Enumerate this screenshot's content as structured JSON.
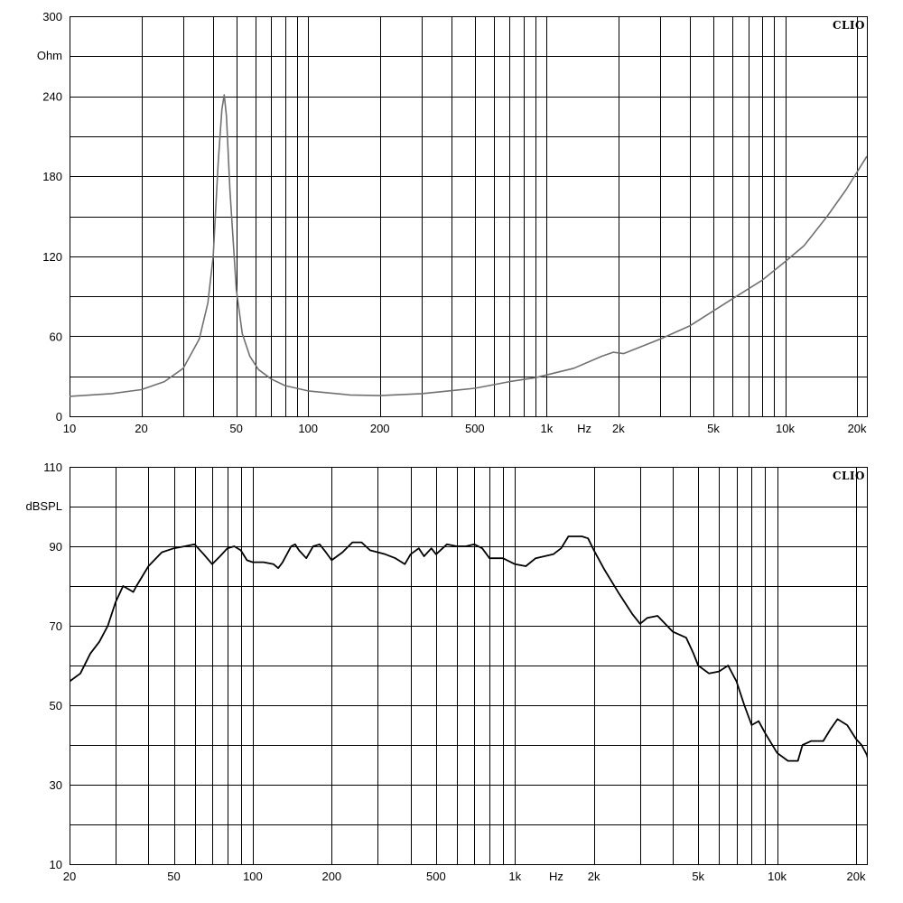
{
  "chart_data": [
    {
      "type": "line",
      "brand": "CLIO",
      "ylabel": "Ohm",
      "xlabel": "Hz",
      "x_scale": "log",
      "xlim": [
        10,
        22000
      ],
      "ylim": [
        0,
        300
      ],
      "grid": true,
      "x_ticks": [
        {
          "v": 10,
          "label": "10"
        },
        {
          "v": 20,
          "label": "20"
        },
        {
          "v": 50,
          "label": "50"
        },
        {
          "v": 100,
          "label": "100"
        },
        {
          "v": 200,
          "label": "200"
        },
        {
          "v": 500,
          "label": "500"
        },
        {
          "v": 1000,
          "label": "1k"
        },
        {
          "v": 2000,
          "label": "2k"
        },
        {
          "v": 5000,
          "label": "5k"
        },
        {
          "v": 10000,
          "label": "10k"
        },
        {
          "v": 20000,
          "label": "20k"
        }
      ],
      "y_ticks": [
        {
          "v": 0,
          "label": "0"
        },
        {
          "v": 60,
          "label": "60"
        },
        {
          "v": 120,
          "label": "120"
        },
        {
          "v": 180,
          "label": "180"
        },
        {
          "v": 240,
          "label": "240"
        },
        {
          "v": 300,
          "label": "300"
        }
      ],
      "y_grid_step": 30,
      "series": [
        {
          "color": "#707070",
          "points": [
            [
              10,
              15
            ],
            [
              15,
              17
            ],
            [
              20,
              20
            ],
            [
              25,
              26
            ],
            [
              30,
              36
            ],
            [
              35,
              58
            ],
            [
              38,
              85
            ],
            [
              40,
              120
            ],
            [
              42,
              190
            ],
            [
              43.5,
              230
            ],
            [
              44.5,
              241
            ],
            [
              45.5,
              225
            ],
            [
              47,
              170
            ],
            [
              50,
              95
            ],
            [
              53,
              62
            ],
            [
              57,
              45
            ],
            [
              62,
              35
            ],
            [
              70,
              28
            ],
            [
              80,
              23
            ],
            [
              100,
              19
            ],
            [
              150,
              16
            ],
            [
              200,
              15.5
            ],
            [
              300,
              17
            ],
            [
              500,
              21
            ],
            [
              700,
              26
            ],
            [
              900,
              29
            ],
            [
              1000,
              31
            ],
            [
              1300,
              36
            ],
            [
              1700,
              45
            ],
            [
              1900,
              48
            ],
            [
              2100,
              47
            ],
            [
              3000,
              58
            ],
            [
              4000,
              68
            ],
            [
              5000,
              79
            ],
            [
              6000,
              88
            ],
            [
              8000,
              102
            ],
            [
              10000,
              116
            ],
            [
              12000,
              128
            ],
            [
              15000,
              150
            ],
            [
              18000,
              170
            ],
            [
              22000,
              195
            ]
          ]
        }
      ]
    },
    {
      "type": "line",
      "brand": "CLIO",
      "ylabel": "dBSPL",
      "xlabel": "Hz",
      "x_scale": "log",
      "xlim": [
        20,
        22000
      ],
      "ylim": [
        10,
        110
      ],
      "grid": true,
      "x_ticks": [
        {
          "v": 20,
          "label": "20"
        },
        {
          "v": 50,
          "label": "50"
        },
        {
          "v": 100,
          "label": "100"
        },
        {
          "v": 200,
          "label": "200"
        },
        {
          "v": 500,
          "label": "500"
        },
        {
          "v": 1000,
          "label": "1k"
        },
        {
          "v": 2000,
          "label": "2k"
        },
        {
          "v": 5000,
          "label": "5k"
        },
        {
          "v": 10000,
          "label": "10k"
        },
        {
          "v": 20000,
          "label": "20k"
        }
      ],
      "y_ticks": [
        {
          "v": 10,
          "label": "10"
        },
        {
          "v": 30,
          "label": "30"
        },
        {
          "v": 50,
          "label": "50"
        },
        {
          "v": 70,
          "label": "70"
        },
        {
          "v": 90,
          "label": "90"
        },
        {
          "v": 110,
          "label": "110"
        }
      ],
      "y_grid_step": 10,
      "series": [
        {
          "color": "#000000",
          "points": [
            [
              20,
              56
            ],
            [
              22,
              58
            ],
            [
              24,
              63
            ],
            [
              26,
              66
            ],
            [
              28,
              70
            ],
            [
              30,
              76
            ],
            [
              32,
              80
            ],
            [
              34,
              79
            ],
            [
              35,
              78.5
            ],
            [
              36,
              80
            ],
            [
              40,
              85
            ],
            [
              45,
              88.5
            ],
            [
              50,
              89.5
            ],
            [
              55,
              90
            ],
            [
              60,
              90.5
            ],
            [
              65,
              88
            ],
            [
              70,
              85.5
            ],
            [
              75,
              87.5
            ],
            [
              80,
              89.5
            ],
            [
              85,
              90
            ],
            [
              90,
              89
            ],
            [
              95,
              86.5
            ],
            [
              100,
              86
            ],
            [
              110,
              86
            ],
            [
              120,
              85.5
            ],
            [
              125,
              84.5
            ],
            [
              130,
              86
            ],
            [
              140,
              90
            ],
            [
              145,
              90.5
            ],
            [
              150,
              89
            ],
            [
              160,
              87
            ],
            [
              170,
              90
            ],
            [
              180,
              90.5
            ],
            [
              190,
              88.5
            ],
            [
              200,
              86.5
            ],
            [
              220,
              88.5
            ],
            [
              240,
              91
            ],
            [
              260,
              91
            ],
            [
              280,
              89
            ],
            [
              300,
              88.5
            ],
            [
              320,
              88
            ],
            [
              350,
              87
            ],
            [
              380,
              85.5
            ],
            [
              400,
              88
            ],
            [
              430,
              89.5
            ],
            [
              450,
              87.5
            ],
            [
              480,
              89.5
            ],
            [
              500,
              88
            ],
            [
              550,
              90.5
            ],
            [
              600,
              90
            ],
            [
              650,
              90
            ],
            [
              700,
              90.5
            ],
            [
              750,
              89.5
            ],
            [
              800,
              87
            ],
            [
              900,
              87
            ],
            [
              1000,
              85.5
            ],
            [
              1100,
              85
            ],
            [
              1200,
              87
            ],
            [
              1400,
              88
            ],
            [
              1500,
              89.5
            ],
            [
              1600,
              92.5
            ],
            [
              1800,
              92.5
            ],
            [
              1900,
              92
            ],
            [
              2000,
              89
            ],
            [
              2200,
              84
            ],
            [
              2500,
              78
            ],
            [
              2800,
              73
            ],
            [
              3000,
              70.5
            ],
            [
              3200,
              72
            ],
            [
              3500,
              72.5
            ],
            [
              4000,
              68.5
            ],
            [
              4500,
              67
            ],
            [
              4800,
              63
            ],
            [
              5000,
              60
            ],
            [
              5500,
              58
            ],
            [
              6000,
              58.5
            ],
            [
              6500,
              60
            ],
            [
              7000,
              56
            ],
            [
              7500,
              50
            ],
            [
              8000,
              45
            ],
            [
              8500,
              46
            ],
            [
              9000,
              43
            ],
            [
              10000,
              38
            ],
            [
              11000,
              36
            ],
            [
              12000,
              36
            ],
            [
              12500,
              40
            ],
            [
              13500,
              41
            ],
            [
              15000,
              41
            ],
            [
              16000,
              44
            ],
            [
              17000,
              46.5
            ],
            [
              18500,
              45
            ],
            [
              20000,
              41.5
            ],
            [
              21000,
              40
            ],
            [
              22000,
              37.5
            ],
            [
              22500,
              35
            ]
          ]
        }
      ]
    }
  ]
}
